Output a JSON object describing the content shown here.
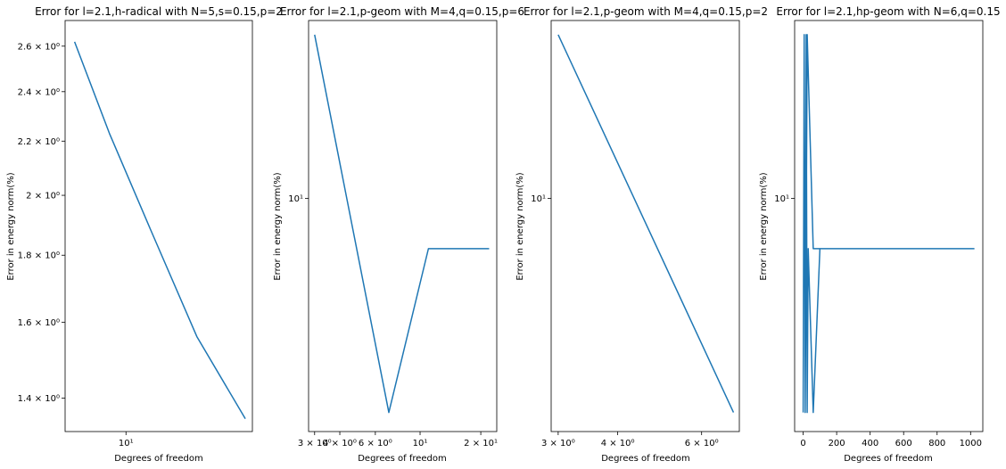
{
  "chart_data": [
    {
      "type": "line",
      "title": "Error for l=2.1,h-radical with N=5,s=0.15,p=2",
      "xlabel": "Degrees of freedom",
      "ylabel": "Error in energy norm(%)",
      "xscale": "log",
      "yscale": "log",
      "xlim": [
        4.4,
        55
      ],
      "ylim": [
        1.32,
        2.72
      ],
      "xticks": [
        {
          "value": 10,
          "label": "10¹"
        }
      ],
      "yticks": [
        {
          "value": 1.4,
          "label": "1.4 × 10⁰"
        },
        {
          "value": 1.6,
          "label": "1.6 × 10⁰"
        },
        {
          "value": 1.8,
          "label": "1.8 × 10⁰"
        },
        {
          "value": 2.0,
          "label": "2 × 10⁰"
        },
        {
          "value": 2.2,
          "label": "2.2 × 10⁰"
        },
        {
          "value": 2.4,
          "label": "2.4 × 10⁰"
        },
        {
          "value": 2.6,
          "label": "2.6 × 10⁰"
        }
      ],
      "series": [
        {
          "color": "#1f77b4",
          "x": [
            5,
            8,
            14,
            26,
            50
          ],
          "y": [
            2.62,
            2.23,
            1.88,
            1.56,
            1.35
          ]
        }
      ]
    },
    {
      "type": "line",
      "title": "Error for l=2.1,p-geom with M=4,q=0.15,p=6",
      "xlabel": "Degrees of freedom",
      "ylabel": "Error in energy norm(%)",
      "xscale": "log",
      "yscale": "log",
      "xlim": [
        2.8,
        24
      ],
      "ylim": [
        4.7,
        17.8
      ],
      "xticks": [
        {
          "value": 3,
          "label": "3 × 10⁰"
        },
        {
          "value": 4,
          "label": "4 × 10⁰"
        },
        {
          "value": 6,
          "label": "6 × 10⁰"
        },
        {
          "value": 10,
          "label": "10¹"
        },
        {
          "value": 20,
          "label": "2 × 10¹"
        }
      ],
      "yticks": [
        {
          "value": 10,
          "label": "10¹"
        }
      ],
      "series": [
        {
          "color": "#1f77b4",
          "x": [
            3,
            7,
            11,
            22
          ],
          "y": [
            17,
            5,
            8.5,
            8.5
          ]
        }
      ]
    },
    {
      "type": "line",
      "title": "Error for l=2.1,p-geom with M=4,q=0.15,p=2",
      "xlabel": "Degrees of freedom",
      "ylabel": "Error in energy norm(%)",
      "xscale": "log",
      "yscale": "log",
      "xlim": [
        2.9,
        7.2
      ],
      "ylim": [
        4.7,
        17.8
      ],
      "xticks": [
        {
          "value": 3,
          "label": "3 × 10⁰"
        },
        {
          "value": 4,
          "label": "4 × 10⁰"
        },
        {
          "value": 6,
          "label": "6 × 10⁰"
        }
      ],
      "yticks": [
        {
          "value": 10,
          "label": "10¹"
        }
      ],
      "series": [
        {
          "color": "#1f77b4",
          "x": [
            3,
            7
          ],
          "y": [
            17,
            5
          ]
        }
      ]
    },
    {
      "type": "line",
      "title": "Error for l=2.1,hp-geom with N=6,q=0.15",
      "xlabel": "Degrees of freedom",
      "ylabel": "Error in energy norm(%)",
      "xscale": "linear",
      "yscale": "log",
      "xlim": [
        -51,
        1073
      ],
      "ylim": [
        4.7,
        17.8
      ],
      "xticks": [
        {
          "value": 0,
          "label": "0"
        },
        {
          "value": 200,
          "label": "200"
        },
        {
          "value": 400,
          "label": "400"
        },
        {
          "value": 600,
          "label": "600"
        },
        {
          "value": 800,
          "label": "800"
        },
        {
          "value": 1000,
          "label": "1000"
        }
      ],
      "yticks": [
        {
          "value": 10,
          "label": "10¹"
        }
      ],
      "series": [
        {
          "color": "#1f77b4",
          "x": [
            0,
            6,
            12,
            18,
            24,
            30,
            60,
            100,
            260,
            1020,
            260,
            60,
            24,
            18,
            12,
            6,
            0
          ],
          "y": [
            5,
            17,
            5,
            17,
            5,
            8.5,
            5,
            8.5,
            8.5,
            8.5,
            8.5,
            8.5,
            17,
            8.5,
            5,
            17,
            5
          ]
        }
      ]
    }
  ]
}
